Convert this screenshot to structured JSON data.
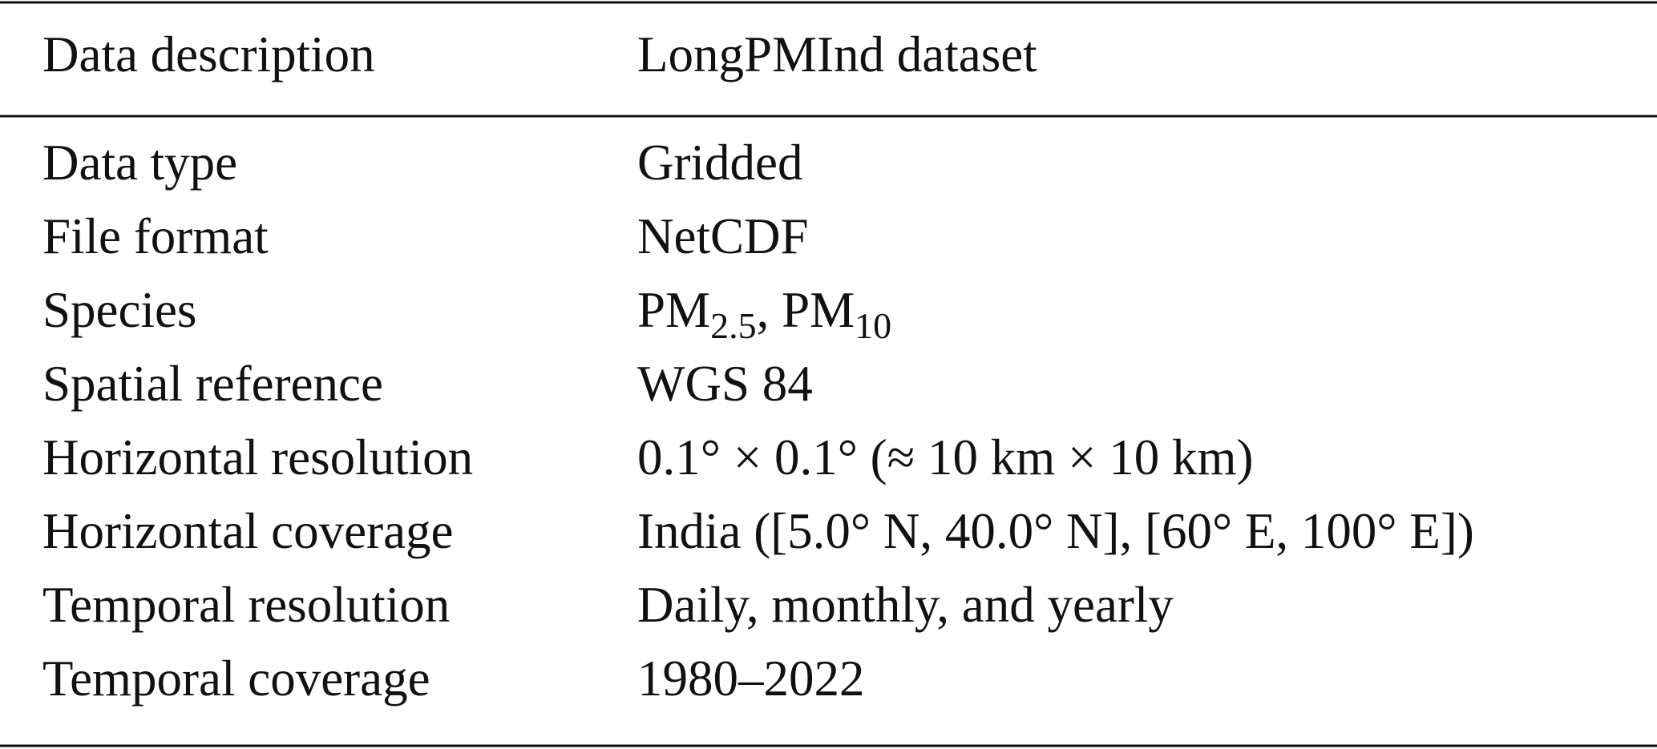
{
  "table": {
    "header": [
      "Data description",
      "LongPMInd dataset"
    ],
    "rows": [
      [
        "Data type",
        "Gridded"
      ],
      [
        "File format",
        "NetCDF"
      ],
      [
        "Species",
        [
          {
            "text": "PM"
          },
          {
            "text": "2.5",
            "sub": true
          },
          {
            "text": ", PM"
          },
          {
            "text": "10",
            "sub": true
          }
        ]
      ],
      [
        "Spatial reference",
        "WGS 84"
      ],
      [
        "Horizontal resolution",
        "0.1° × 0.1° (≈ 10 km × 10 km)"
      ],
      [
        "Horizontal coverage",
        "India ([5.0° N, 40.0° N], [60° E, 100° E])"
      ],
      [
        "Temporal resolution",
        "Daily, monthly, and yearly"
      ],
      [
        "Temporal coverage",
        "1980–2022"
      ]
    ]
  }
}
